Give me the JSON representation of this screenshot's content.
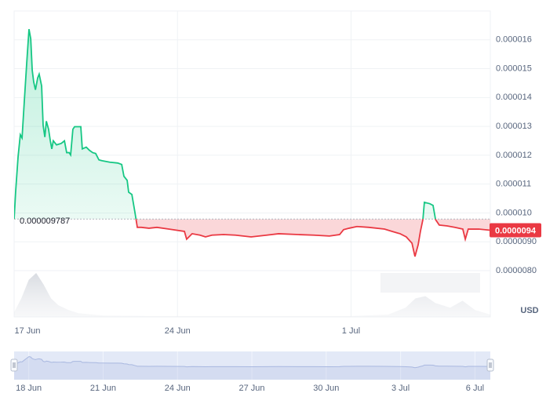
{
  "chart_data": [
    {
      "type": "line",
      "x": [
        0.41,
        0.47,
        0.57,
        0.66,
        0.73,
        0.82,
        0.92,
        1.01,
        1.08,
        1.14,
        1.2,
        1.27,
        1.36,
        1.42,
        1.52,
        1.58,
        1.65,
        1.71,
        1.8,
        1.87,
        1.93,
        1.99,
        2.12,
        2.31,
        2.44,
        2.53,
        2.63,
        2.69,
        2.78,
        2.85,
        3.1,
        3.16,
        3.32,
        3.45,
        3.58,
        3.7,
        3.83,
        3.96,
        4.27,
        4.59,
        4.75,
        4.84,
        4.97,
        5.03,
        5.16,
        5.28,
        5.38,
        5.54,
        5.85,
        6.17,
        6.65,
        7.28,
        7.37,
        7.59,
        7.91,
        8.13,
        8.39,
        8.86,
        9.34,
        9.97,
        10.6,
        11.08,
        11.87,
        12.5,
        13.13,
        13.54,
        13.7,
        13.92,
        14.24,
        14.72,
        15.35,
        15.66,
        15.98,
        16.23,
        16.46,
        16.58,
        16.71,
        16.8,
        16.9,
        16.96,
        17.18,
        17.31,
        17.41,
        17.56,
        17.88,
        18.2,
        18.51,
        18.61,
        18.73,
        19.15,
        19.62
      ],
      "values": [
        9.787e-06,
        1.072e-05,
        1.195e-05,
        1.271e-05,
        1.26e-05,
        1.386e-05,
        1.522e-05,
        1.637e-05,
        1.604e-05,
        1.495e-05,
        1.454e-05,
        1.427e-05,
        1.468e-05,
        1.481e-05,
        1.44e-05,
        1.304e-05,
        1.263e-05,
        1.318e-05,
        1.29e-05,
        1.25e-05,
        1.222e-05,
        1.25e-05,
        1.236e-05,
        1.241e-05,
        1.25e-05,
        1.209e-05,
        1.209e-05,
        1.201e-05,
        1.29e-05,
        1.299e-05,
        1.299e-05,
        1.222e-05,
        1.228e-05,
        1.217e-05,
        1.209e-05,
        1.206e-05,
        1.184e-05,
        1.181e-05,
        1.176e-05,
        1.173e-05,
        1.168e-05,
        1.127e-05,
        1.113e-05,
        1.072e-05,
        1.064e-05,
        1.004e-05,
        9.5e-06,
        9.5e-06,
        9.47e-06,
        9.5e-06,
        9.44e-06,
        9.36e-06,
        9.09e-06,
        9.28e-06,
        9.23e-06,
        9.17e-06,
        9.23e-06,
        9.25e-06,
        9.23e-06,
        9.17e-06,
        9.23e-06,
        9.28e-06,
        9.25e-06,
        9.23e-06,
        9.2e-06,
        9.25e-06,
        9.42e-06,
        9.47e-06,
        9.53e-06,
        9.5e-06,
        9.44e-06,
        9.36e-06,
        9.28e-06,
        9.17e-06,
        8.95e-06,
        8.49e-06,
        8.9e-06,
        9.36e-06,
        9.77e-06,
        1.037e-05,
        1.032e-05,
        1.026e-05,
        9.77e-06,
        9.58e-06,
        9.55e-06,
        9.5e-06,
        9.44e-06,
        9.09e-06,
        9.44e-06,
        9.44e-06,
        9.4e-06
      ],
      "color_above": "#16c784",
      "color_below": "#ea3943",
      "baseline": 9.787e-06,
      "current_price": 9.4e-06,
      "volume": {
        "x": [
          0.41,
          0.7,
          1.0,
          1.3,
          1.6,
          1.9,
          2.2,
          2.6,
          3.0,
          4.0,
          6.0,
          10.0,
          14.0,
          15.5,
          16.2,
          16.6,
          17.0,
          17.4,
          18.0,
          18.5,
          19.0,
          19.62
        ],
        "values": [
          10,
          40,
          80,
          95,
          70,
          40,
          25,
          15,
          8,
          3,
          2,
          2,
          2,
          5,
          20,
          40,
          45,
          30,
          20,
          35,
          15,
          5
        ]
      },
      "y2lim": [
        0,
        100
      ],
      "xlim": [
        0.41,
        19.62
      ],
      "xticks": [
        {
          "value": 0,
          "label": "17 Jun"
        },
        {
          "value": 7,
          "label": "24 Jun"
        },
        {
          "value": 14,
          "label": "1 Jul"
        }
      ],
      "ylim": [
        8e-06,
        1.7e-05
      ],
      "yticks": [
        1.6e-05,
        1.5e-05,
        1.4e-05,
        1.3e-05,
        1.2e-05,
        1.1e-05,
        {
          "value": 1e-05,
          "label": "0.000010"
        },
        {
          "value": 9e-06,
          "label": "0.0000090"
        },
        {
          "value": 8e-06,
          "label": "0.0000080"
        }
      ],
      "unit_label": "USD",
      "grid": true
    },
    {
      "type": "area",
      "color": "#a9b8e0",
      "ylim": [
        0,
        2e-05
      ],
      "xticks": [
        {
          "value": 1,
          "label": "18 Jun"
        },
        {
          "value": 4,
          "label": "21 Jun"
        },
        {
          "value": 7,
          "label": "24 Jun"
        },
        {
          "value": 10,
          "label": "27 Jun"
        },
        {
          "value": 13,
          "label": "30 Jun"
        },
        {
          "value": 16,
          "label": "3 Jul"
        },
        {
          "value": 19,
          "label": "6 Jul"
        }
      ]
    }
  ]
}
